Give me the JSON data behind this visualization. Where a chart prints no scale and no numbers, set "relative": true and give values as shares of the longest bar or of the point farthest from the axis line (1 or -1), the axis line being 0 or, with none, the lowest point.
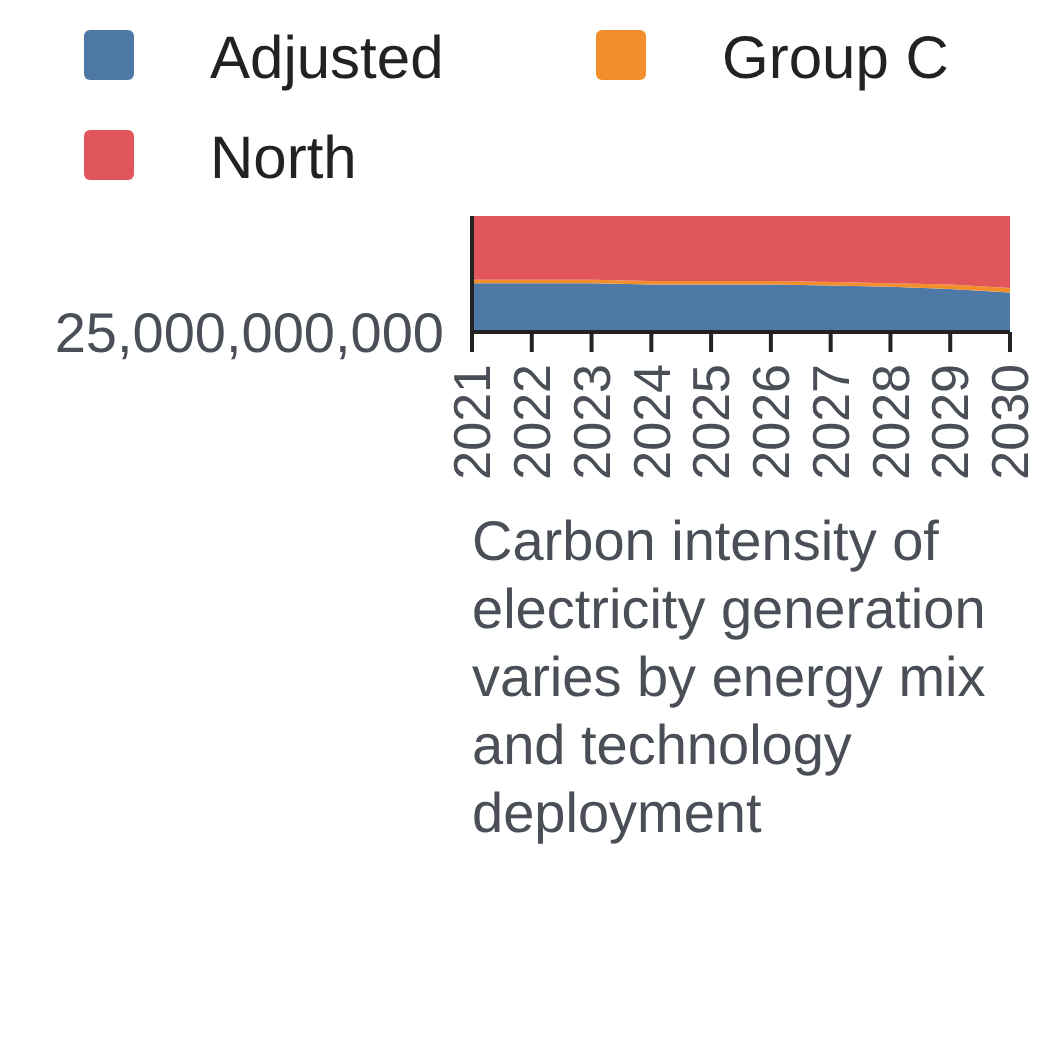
{
  "chart_data": {
    "type": "area",
    "stacked": true,
    "relative": true,
    "xlabel": "Carbon intensity of electricity generation varies by energy mix and technology deployment",
    "x": [
      2021,
      2022,
      2023,
      2024,
      2025,
      2026,
      2027,
      2028,
      2029,
      2030
    ],
    "xlim": [
      2021,
      2030
    ],
    "xticks": [
      2021,
      2022,
      2023,
      2024,
      2025,
      2026,
      2027,
      2028,
      2029,
      2030
    ],
    "series": [
      {
        "name": "Adjusted",
        "color": "#4e79a7",
        "values": [
          0.42,
          0.42,
          0.42,
          0.41,
          0.41,
          0.41,
          0.4,
          0.39,
          0.37,
          0.34
        ]
      },
      {
        "name": "Group C",
        "color": "#f28e2b",
        "values": [
          0.03,
          0.03,
          0.03,
          0.03,
          0.03,
          0.03,
          0.03,
          0.03,
          0.04,
          0.04
        ]
      },
      {
        "name": "North",
        "color": "#e15759",
        "values": [
          0.55,
          0.55,
          0.55,
          0.56,
          0.56,
          0.56,
          0.57,
          0.58,
          0.59,
          0.62
        ]
      }
    ],
    "annotations": [
      "25,000,000,000"
    ],
    "legend": "top"
  }
}
